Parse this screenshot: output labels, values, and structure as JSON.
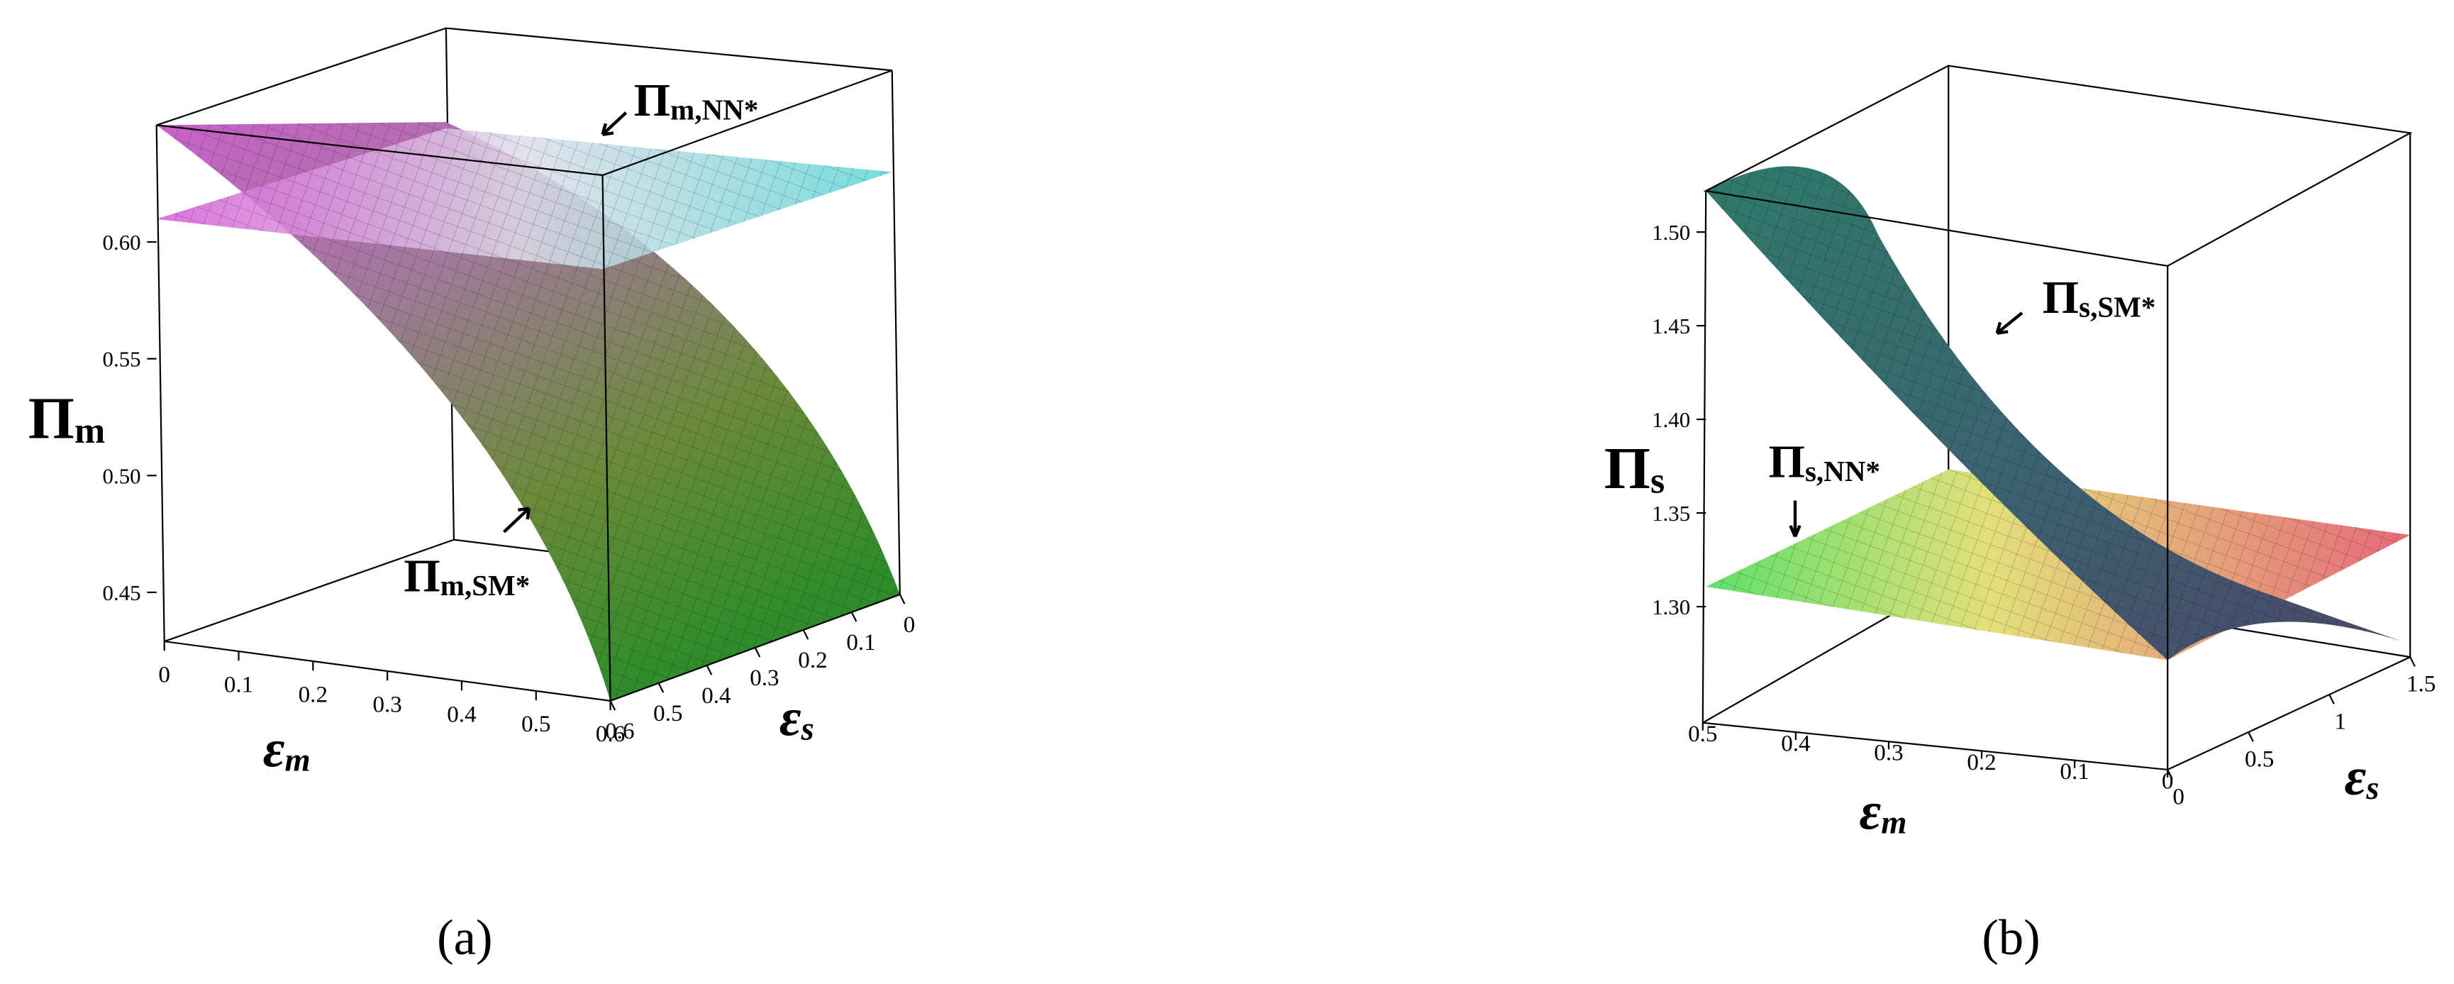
{
  "chart_data": [
    {
      "type": "surface3d",
      "panel_label": "(a)",
      "xlabel": "ε",
      "xlabel_sub": "m",
      "ylabel": "ε",
      "ylabel_sub": "s",
      "zlabel": "Π",
      "zlabel_sub": "m",
      "xlim": [
        0,
        0.6
      ],
      "xticks": [
        0,
        0.1,
        0.2,
        0.3,
        0.4,
        0.5,
        0.6
      ],
      "ylim": [
        0.6,
        0
      ],
      "yticks": [
        0.6,
        0.5,
        0.4,
        0.3,
        0.2,
        0.1,
        0
      ],
      "zlim": [
        0.429,
        0.65
      ],
      "zticks": [
        {
          "value": 0.45,
          "label": "0.45"
        },
        {
          "value": 0.5,
          "label": "0.50"
        },
        {
          "value": 0.55,
          "label": "0.55"
        },
        {
          "value": 0.6,
          "label": "0.60"
        }
      ],
      "annotations": [
        {
          "text": "Π",
          "sub": "m,NN*"
        },
        {
          "text": "Π",
          "sub": "m,SM*"
        }
      ]
    },
    {
      "type": "surface3d",
      "panel_label": "(b)",
      "xlabel": "ε",
      "xlabel_sub": "m",
      "ylabel": "ε",
      "ylabel_sub": "s",
      "zlabel": "Π",
      "zlabel_sub": "s",
      "xlim": [
        0.5,
        0
      ],
      "xticks": [
        0.5,
        0.4,
        0.3,
        0.2,
        0.1,
        0
      ],
      "ylim": [
        0,
        1.5
      ],
      "yticks": [
        0,
        0.5,
        1,
        1.5
      ],
      "zlim": [
        1.238,
        1.522
      ],
      "zticks": [
        {
          "value": 1.3,
          "label": "1.30"
        },
        {
          "value": 1.35,
          "label": "1.35"
        },
        {
          "value": 1.4,
          "label": "1.40"
        },
        {
          "value": 1.45,
          "label": "1.45"
        },
        {
          "value": 1.5,
          "label": "1.50"
        }
      ],
      "annotations": [
        {
          "text": "Π",
          "sub": "s,SM*"
        },
        {
          "text": "Π",
          "sub": "s,NN*"
        }
      ]
    }
  ]
}
